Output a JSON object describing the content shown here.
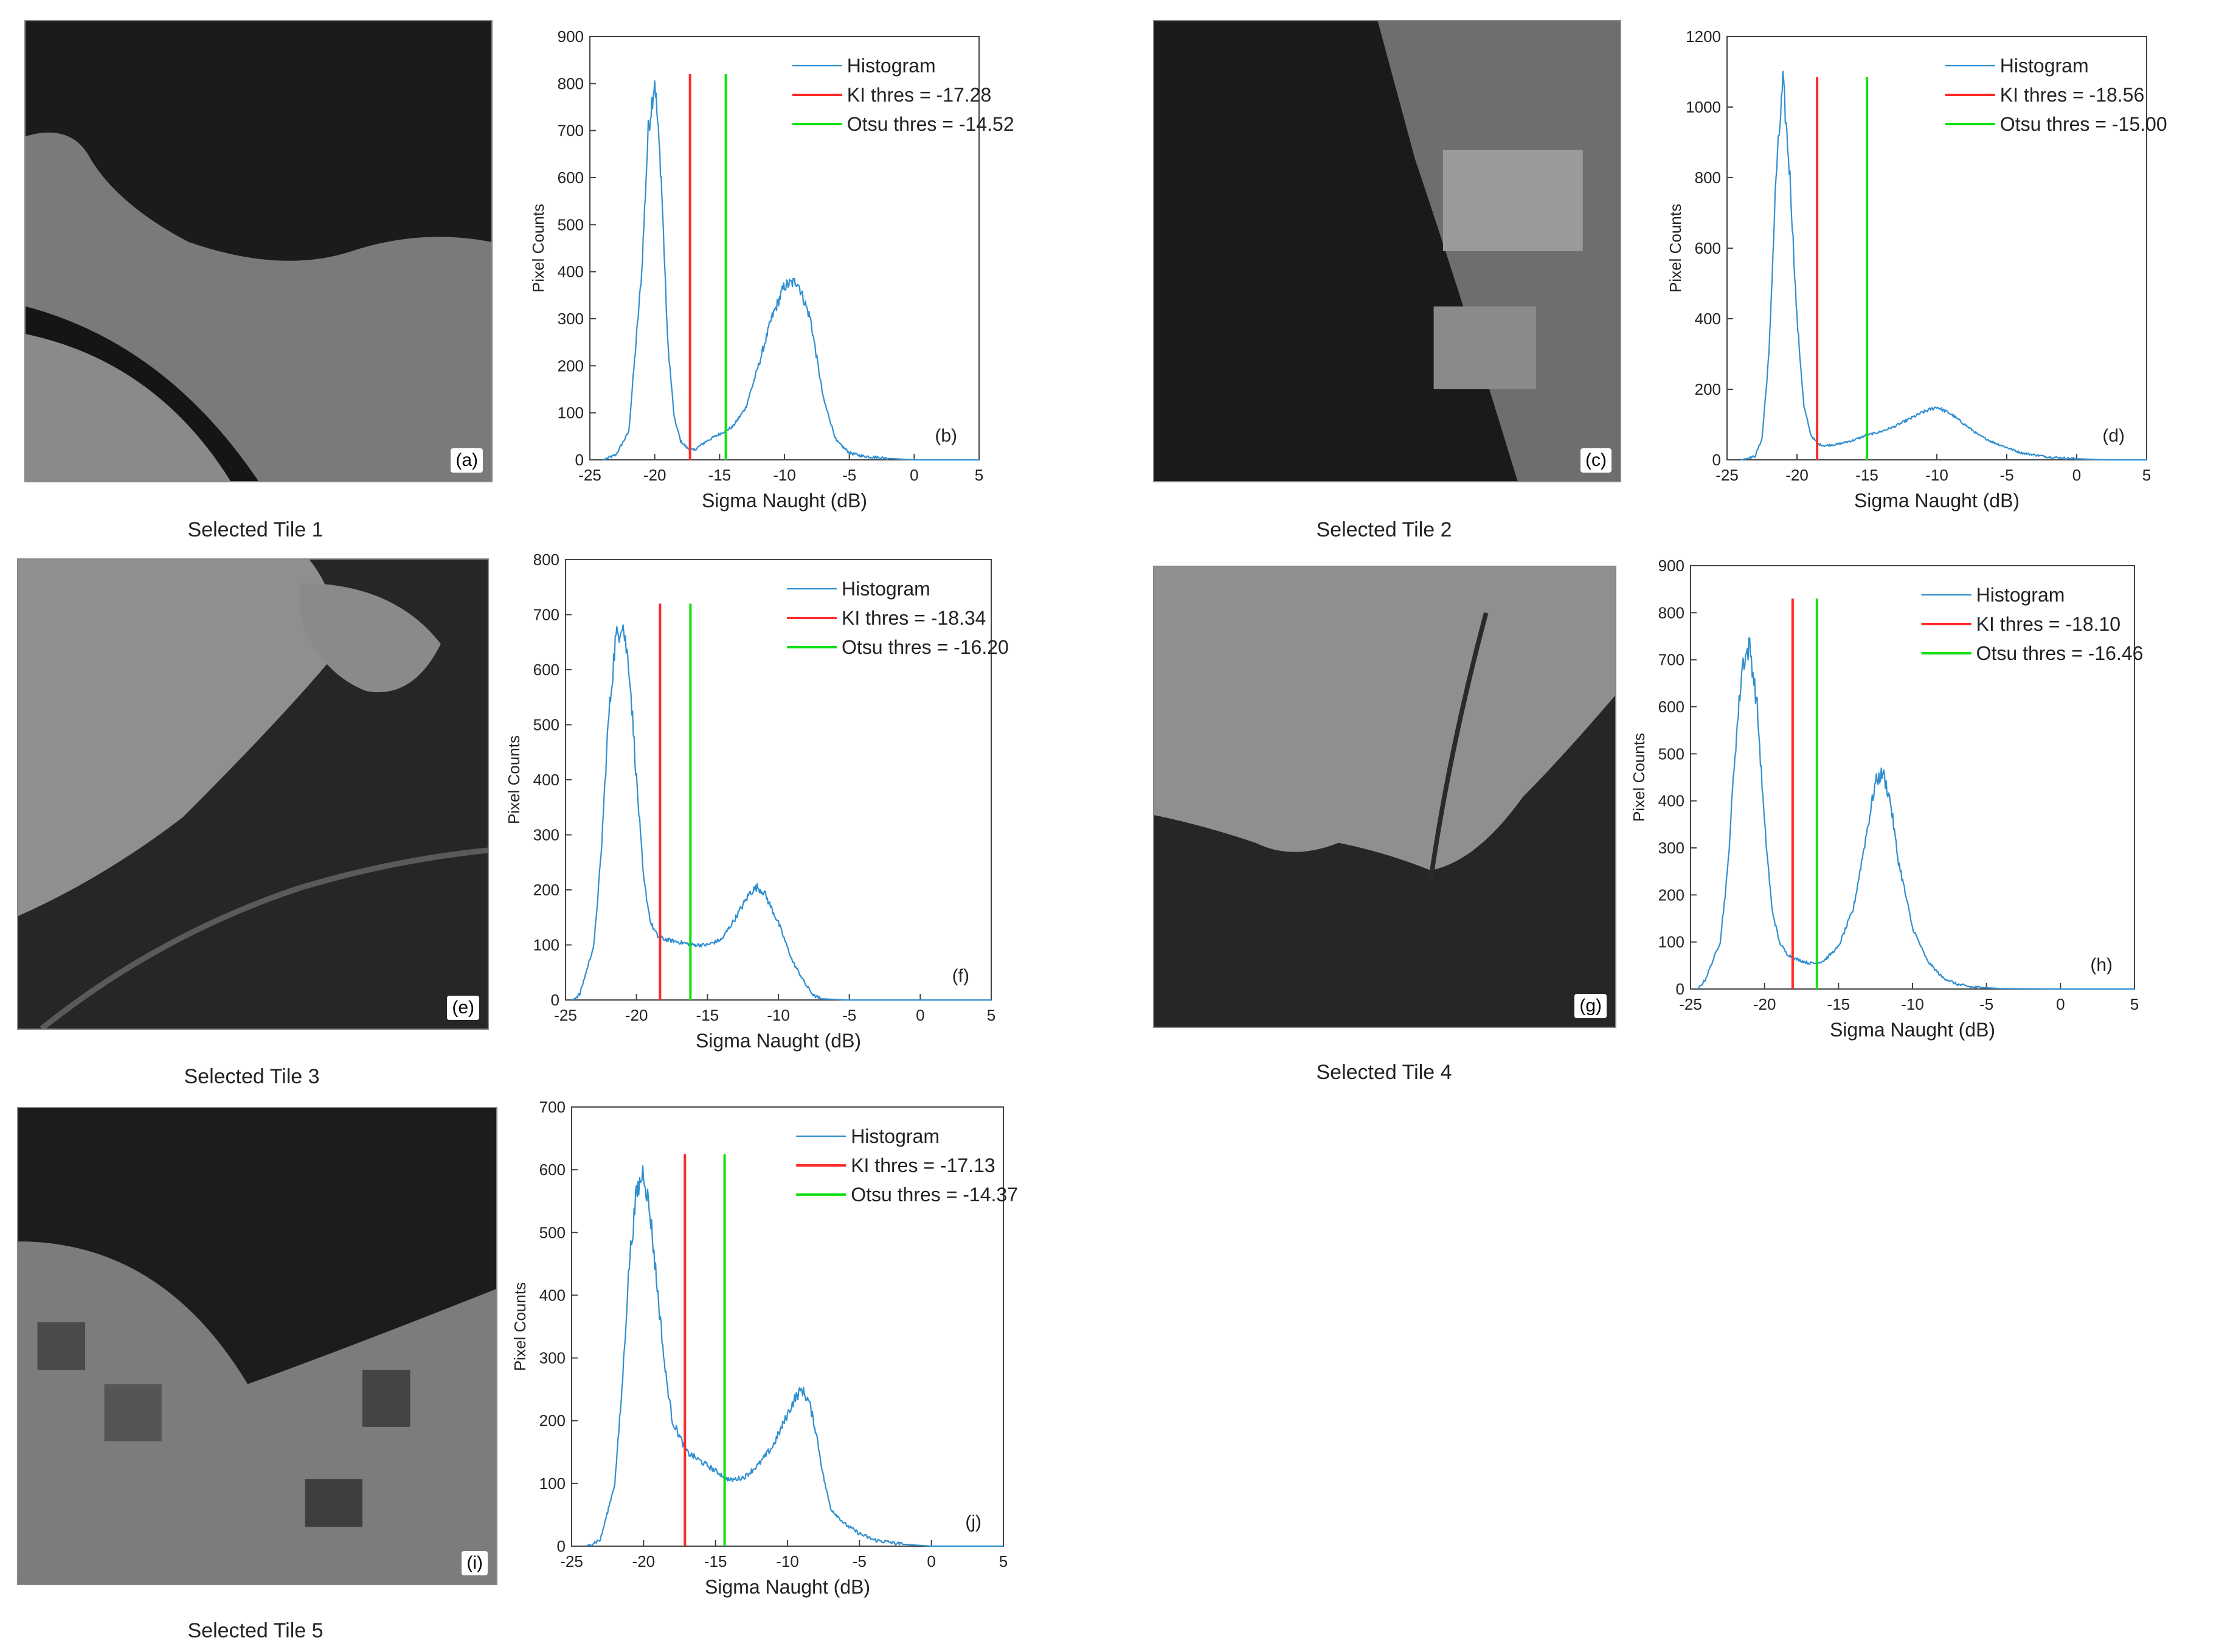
{
  "colors": {
    "histogram": "#2f8fd0",
    "ki": "#ff2a2a",
    "otsu": "#12e012",
    "axis": "#444444"
  },
  "tiles": [
    {
      "caption": "Selected Tile 1",
      "letter": "(a)"
    },
    {
      "caption": "Selected Tile 2",
      "letter": "(c)"
    },
    {
      "caption": "Selected Tile 3",
      "letter": "(e)"
    },
    {
      "caption": "Selected Tile 4",
      "letter": "(g)"
    },
    {
      "caption": "Selected Tile 5",
      "letter": "(i)"
    }
  ],
  "chart_data": [
    {
      "type": "line",
      "panel_label": "(b)",
      "xlabel": "Sigma Naught (dB)",
      "ylabel": "Pixel Counts",
      "xlim": [
        -25,
        5
      ],
      "ylim": [
        0,
        900
      ],
      "xticks": [
        -25,
        -20,
        -15,
        -10,
        -5,
        0,
        5
      ],
      "yticks": [
        0,
        100,
        200,
        300,
        400,
        500,
        600,
        700,
        800,
        900
      ],
      "legend_position": "top-right",
      "series": [
        {
          "name": "Histogram",
          "x": [
            -24,
            -23,
            -22,
            -21,
            -20.5,
            -20,
            -19.5,
            -19,
            -18.5,
            -18,
            -17.5,
            -17,
            -16.5,
            -16,
            -15,
            -14,
            -13,
            -12,
            -11,
            -10,
            -9,
            -8,
            -7,
            -6,
            -5,
            -4,
            -2,
            0,
            2,
            5
          ],
          "y": [
            0,
            10,
            60,
            400,
            700,
            810,
            600,
            250,
            90,
            40,
            25,
            20,
            30,
            40,
            55,
            70,
            110,
            200,
            300,
            370,
            380,
            300,
            130,
            40,
            15,
            8,
            3,
            0,
            0,
            0
          ]
        },
        {
          "name": "KI thres = -17.28",
          "x": [
            -17.28,
            -17.28
          ],
          "y": [
            0,
            820
          ]
        },
        {
          "name": "Otsu thres = -14.52",
          "x": [
            -14.52,
            -14.52
          ],
          "y": [
            0,
            820
          ]
        }
      ]
    },
    {
      "type": "line",
      "panel_label": "(d)",
      "xlabel": "Sigma Naught (dB)",
      "ylabel": "Pixel Counts",
      "xlim": [
        -25,
        5
      ],
      "ylim": [
        0,
        1200
      ],
      "xticks": [
        -25,
        -20,
        -15,
        -10,
        -5,
        0,
        5
      ],
      "yticks": [
        0,
        200,
        400,
        600,
        800,
        1000,
        1200
      ],
      "legend_position": "top-right",
      "series": [
        {
          "name": "Histogram",
          "x": [
            -24,
            -23,
            -22.5,
            -22,
            -21.5,
            -21,
            -20.5,
            -20,
            -19.5,
            -19,
            -18.5,
            -18,
            -17,
            -16,
            -15,
            -14,
            -13,
            -12,
            -11,
            -10,
            -9,
            -8,
            -7,
            -6,
            -5,
            -4,
            -2,
            0,
            2,
            5
          ],
          "y": [
            0,
            10,
            60,
            300,
            800,
            1070,
            800,
            400,
            150,
            70,
            45,
            40,
            45,
            55,
            70,
            80,
            95,
            115,
            135,
            150,
            130,
            100,
            70,
            50,
            35,
            20,
            8,
            3,
            0,
            0
          ]
        },
        {
          "name": "KI thres = -18.56",
          "x": [
            -18.56,
            -18.56
          ],
          "y": [
            0,
            1085
          ]
        },
        {
          "name": "Otsu thres = -15.00",
          "x": [
            -15.0,
            -15.0
          ],
          "y": [
            0,
            1085
          ]
        }
      ]
    },
    {
      "type": "line",
      "panel_label": "(f)",
      "xlabel": "Sigma Naught (dB)",
      "ylabel": "Pixel Counts",
      "xlim": [
        -25,
        5
      ],
      "ylim": [
        0,
        800
      ],
      "xticks": [
        -25,
        -20,
        -15,
        -10,
        -5,
        0,
        5
      ],
      "yticks": [
        0,
        100,
        200,
        300,
        400,
        500,
        600,
        700,
        800
      ],
      "legend_position": "top-right",
      "series": [
        {
          "name": "Histogram",
          "x": [
            -24.5,
            -24,
            -23,
            -22.5,
            -22,
            -21.5,
            -21,
            -20.5,
            -20,
            -19.5,
            -19,
            -18.5,
            -18,
            -17,
            -16,
            -15,
            -14,
            -13,
            -12,
            -11.5,
            -11,
            -10,
            -9,
            -8,
            -7.5,
            -7,
            -5,
            0,
            5
          ],
          "y": [
            0,
            10,
            100,
            260,
            500,
            650,
            690,
            600,
            400,
            220,
            140,
            115,
            110,
            105,
            100,
            100,
            110,
            150,
            195,
            205,
            195,
            140,
            70,
            25,
            8,
            2,
            0,
            0,
            0
          ]
        },
        {
          "name": "KI thres = -18.34",
          "x": [
            -18.34,
            -18.34
          ],
          "y": [
            0,
            720
          ]
        },
        {
          "name": "Otsu thres = -16.20",
          "x": [
            -16.2,
            -16.2
          ],
          "y": [
            0,
            720
          ]
        }
      ]
    },
    {
      "type": "line",
      "panel_label": "(h)",
      "xlabel": "Sigma Naught (dB)",
      "ylabel": "Pixel Counts",
      "xlim": [
        -25,
        5
      ],
      "ylim": [
        0,
        900
      ],
      "xticks": [
        -25,
        -20,
        -15,
        -10,
        -5,
        0,
        5
      ],
      "yticks": [
        0,
        100,
        200,
        300,
        400,
        500,
        600,
        700,
        800,
        900
      ],
      "legend_position": "top-right",
      "series": [
        {
          "name": "Histogram",
          "x": [
            -24.5,
            -24,
            -23,
            -22.5,
            -22,
            -21.5,
            -21,
            -20.5,
            -20,
            -19.5,
            -19,
            -18.5,
            -18,
            -17,
            -16.5,
            -16,
            -15,
            -14,
            -13,
            -12.5,
            -12,
            -11.5,
            -11,
            -10,
            -9,
            -8,
            -7,
            -6,
            -4,
            0,
            5
          ],
          "y": [
            0,
            20,
            100,
            250,
            500,
            690,
            730,
            600,
            350,
            170,
            100,
            75,
            65,
            55,
            55,
            60,
            90,
            170,
            350,
            440,
            460,
            400,
            280,
            130,
            60,
            25,
            10,
            4,
            1,
            0,
            0
          ]
        },
        {
          "name": "KI thres = -18.10",
          "x": [
            -18.1,
            -18.1
          ],
          "y": [
            0,
            830
          ]
        },
        {
          "name": "Otsu thres = -16.46",
          "x": [
            -16.46,
            -16.46
          ],
          "y": [
            0,
            830
          ]
        }
      ]
    },
    {
      "type": "line",
      "panel_label": "(j)",
      "xlabel": "Sigma Naught (dB)",
      "ylabel": "Pixel Counts",
      "xlim": [
        -25,
        5
      ],
      "ylim": [
        0,
        700
      ],
      "xticks": [
        -25,
        -20,
        -15,
        -10,
        -5,
        0,
        5
      ],
      "yticks": [
        0,
        100,
        200,
        300,
        400,
        500,
        600,
        700
      ],
      "legend_position": "top-right",
      "series": [
        {
          "name": "Histogram",
          "x": [
            -24,
            -23,
            -22,
            -21.5,
            -21,
            -20.5,
            -20,
            -19.5,
            -19,
            -18.5,
            -18,
            -17,
            -16,
            -15,
            -14,
            -13,
            -12,
            -11,
            -10,
            -9.5,
            -9,
            -8.5,
            -8,
            -7.5,
            -7,
            -6,
            -5,
            -4,
            -2,
            0,
            5
          ],
          "y": [
            0,
            10,
            100,
            250,
            450,
            560,
            600,
            520,
            400,
            280,
            200,
            150,
            135,
            120,
            105,
            110,
            130,
            160,
            210,
            235,
            250,
            230,
            180,
            110,
            60,
            35,
            20,
            10,
            3,
            0,
            0
          ]
        },
        {
          "name": "KI thres = -17.13",
          "x": [
            -17.13,
            -17.13
          ],
          "y": [
            0,
            625
          ]
        },
        {
          "name": "Otsu thres = -14.37",
          "x": [
            -14.37,
            -14.37
          ],
          "y": [
            0,
            625
          ]
        }
      ]
    }
  ]
}
